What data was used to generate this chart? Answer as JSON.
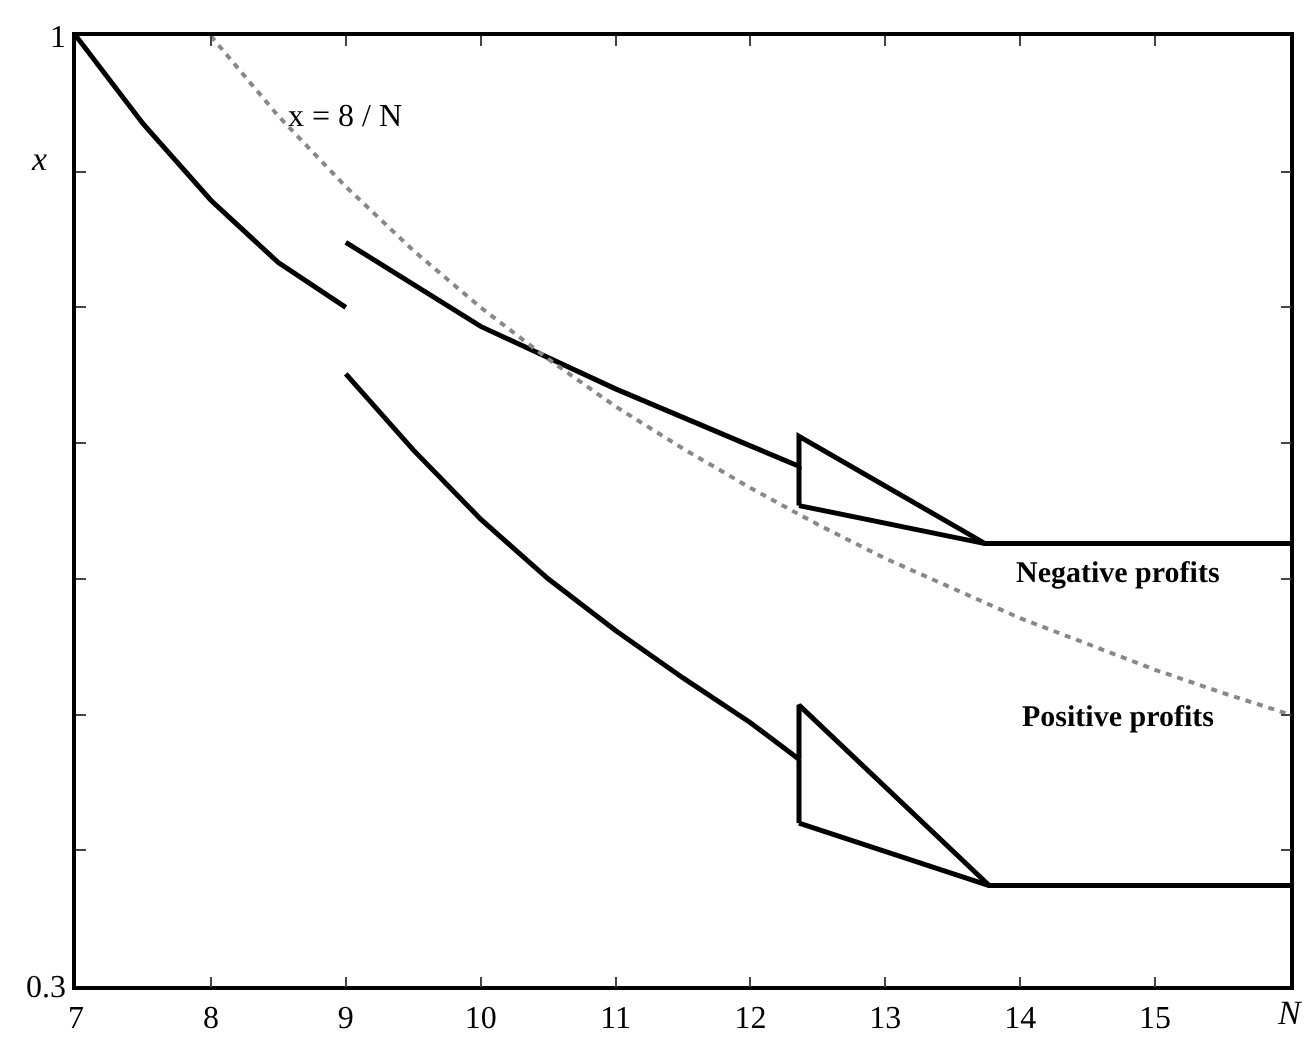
{
  "chart_data": {
    "type": "line",
    "xlabel": "N",
    "ylabel": "x",
    "xlim": [
      7,
      16
    ],
    "xticks": [
      7,
      8,
      9,
      10,
      11,
      12,
      13,
      14,
      15,
      {
        "value": 16,
        "label": null
      }
    ],
    "ylim": [
      0.3,
      1
    ],
    "yticks": [
      1,
      {
        "value": 0.9,
        "label": null
      },
      {
        "value": 0.8,
        "label": null
      },
      {
        "value": 0.7,
        "label": null
      },
      {
        "value": 0.6,
        "label": null
      },
      {
        "value": 0.5,
        "label": null
      },
      {
        "value": 0.4,
        "label": null
      },
      0.3
    ],
    "grid": false,
    "marker": "none",
    "series": [
      {
        "color": "#000000",
        "line_style": "solid",
        "x": [
          7,
          7.5,
          8,
          8.5,
          9,
          null,
          9,
          10,
          11,
          12,
          12.36,
          12.36,
          13.74,
          16,
          null,
          12.36,
          13.74,
          null,
          12.36,
          12.36
        ],
        "values": [
          1,
          0.935,
          0.879,
          0.833,
          0.8,
          null,
          0.848,
          0.786,
          0.74,
          0.698,
          0.683,
          0.705,
          0.626,
          0.626,
          null,
          0.654,
          0.626,
          null,
          0.654,
          0.683
        ]
      },
      {
        "color": "#000000",
        "line_style": "solid",
        "x": [
          9,
          9.5,
          10,
          10.5,
          11,
          11.5,
          12,
          12.36,
          12.36,
          13.77,
          16,
          null,
          12.36,
          13.77,
          null,
          12.36,
          12.36
        ],
        "values": [
          0.751,
          0.695,
          0.644,
          0.6,
          0.562,
          0.527,
          0.494,
          0.467,
          0.507,
          0.374,
          0.374,
          null,
          0.42,
          0.374,
          null,
          0.42,
          0.467
        ]
      },
      {
        "color": "#888888",
        "line_style": "dotted",
        "x": [
          8,
          8.5,
          9,
          9.5,
          10,
          10.5,
          11,
          11.5,
          12,
          12.5,
          13,
          13.5,
          14,
          14.5,
          15,
          15.5,
          16
        ],
        "values": [
          1,
          0.941,
          0.889,
          0.842,
          0.8,
          0.762,
          0.727,
          0.696,
          0.667,
          0.64,
          0.615,
          0.593,
          0.571,
          0.552,
          0.533,
          0.516,
          0.5
        ]
      }
    ],
    "annotations": [
      "x = 8 / N",
      "Negative profits",
      "Positive profits"
    ]
  }
}
